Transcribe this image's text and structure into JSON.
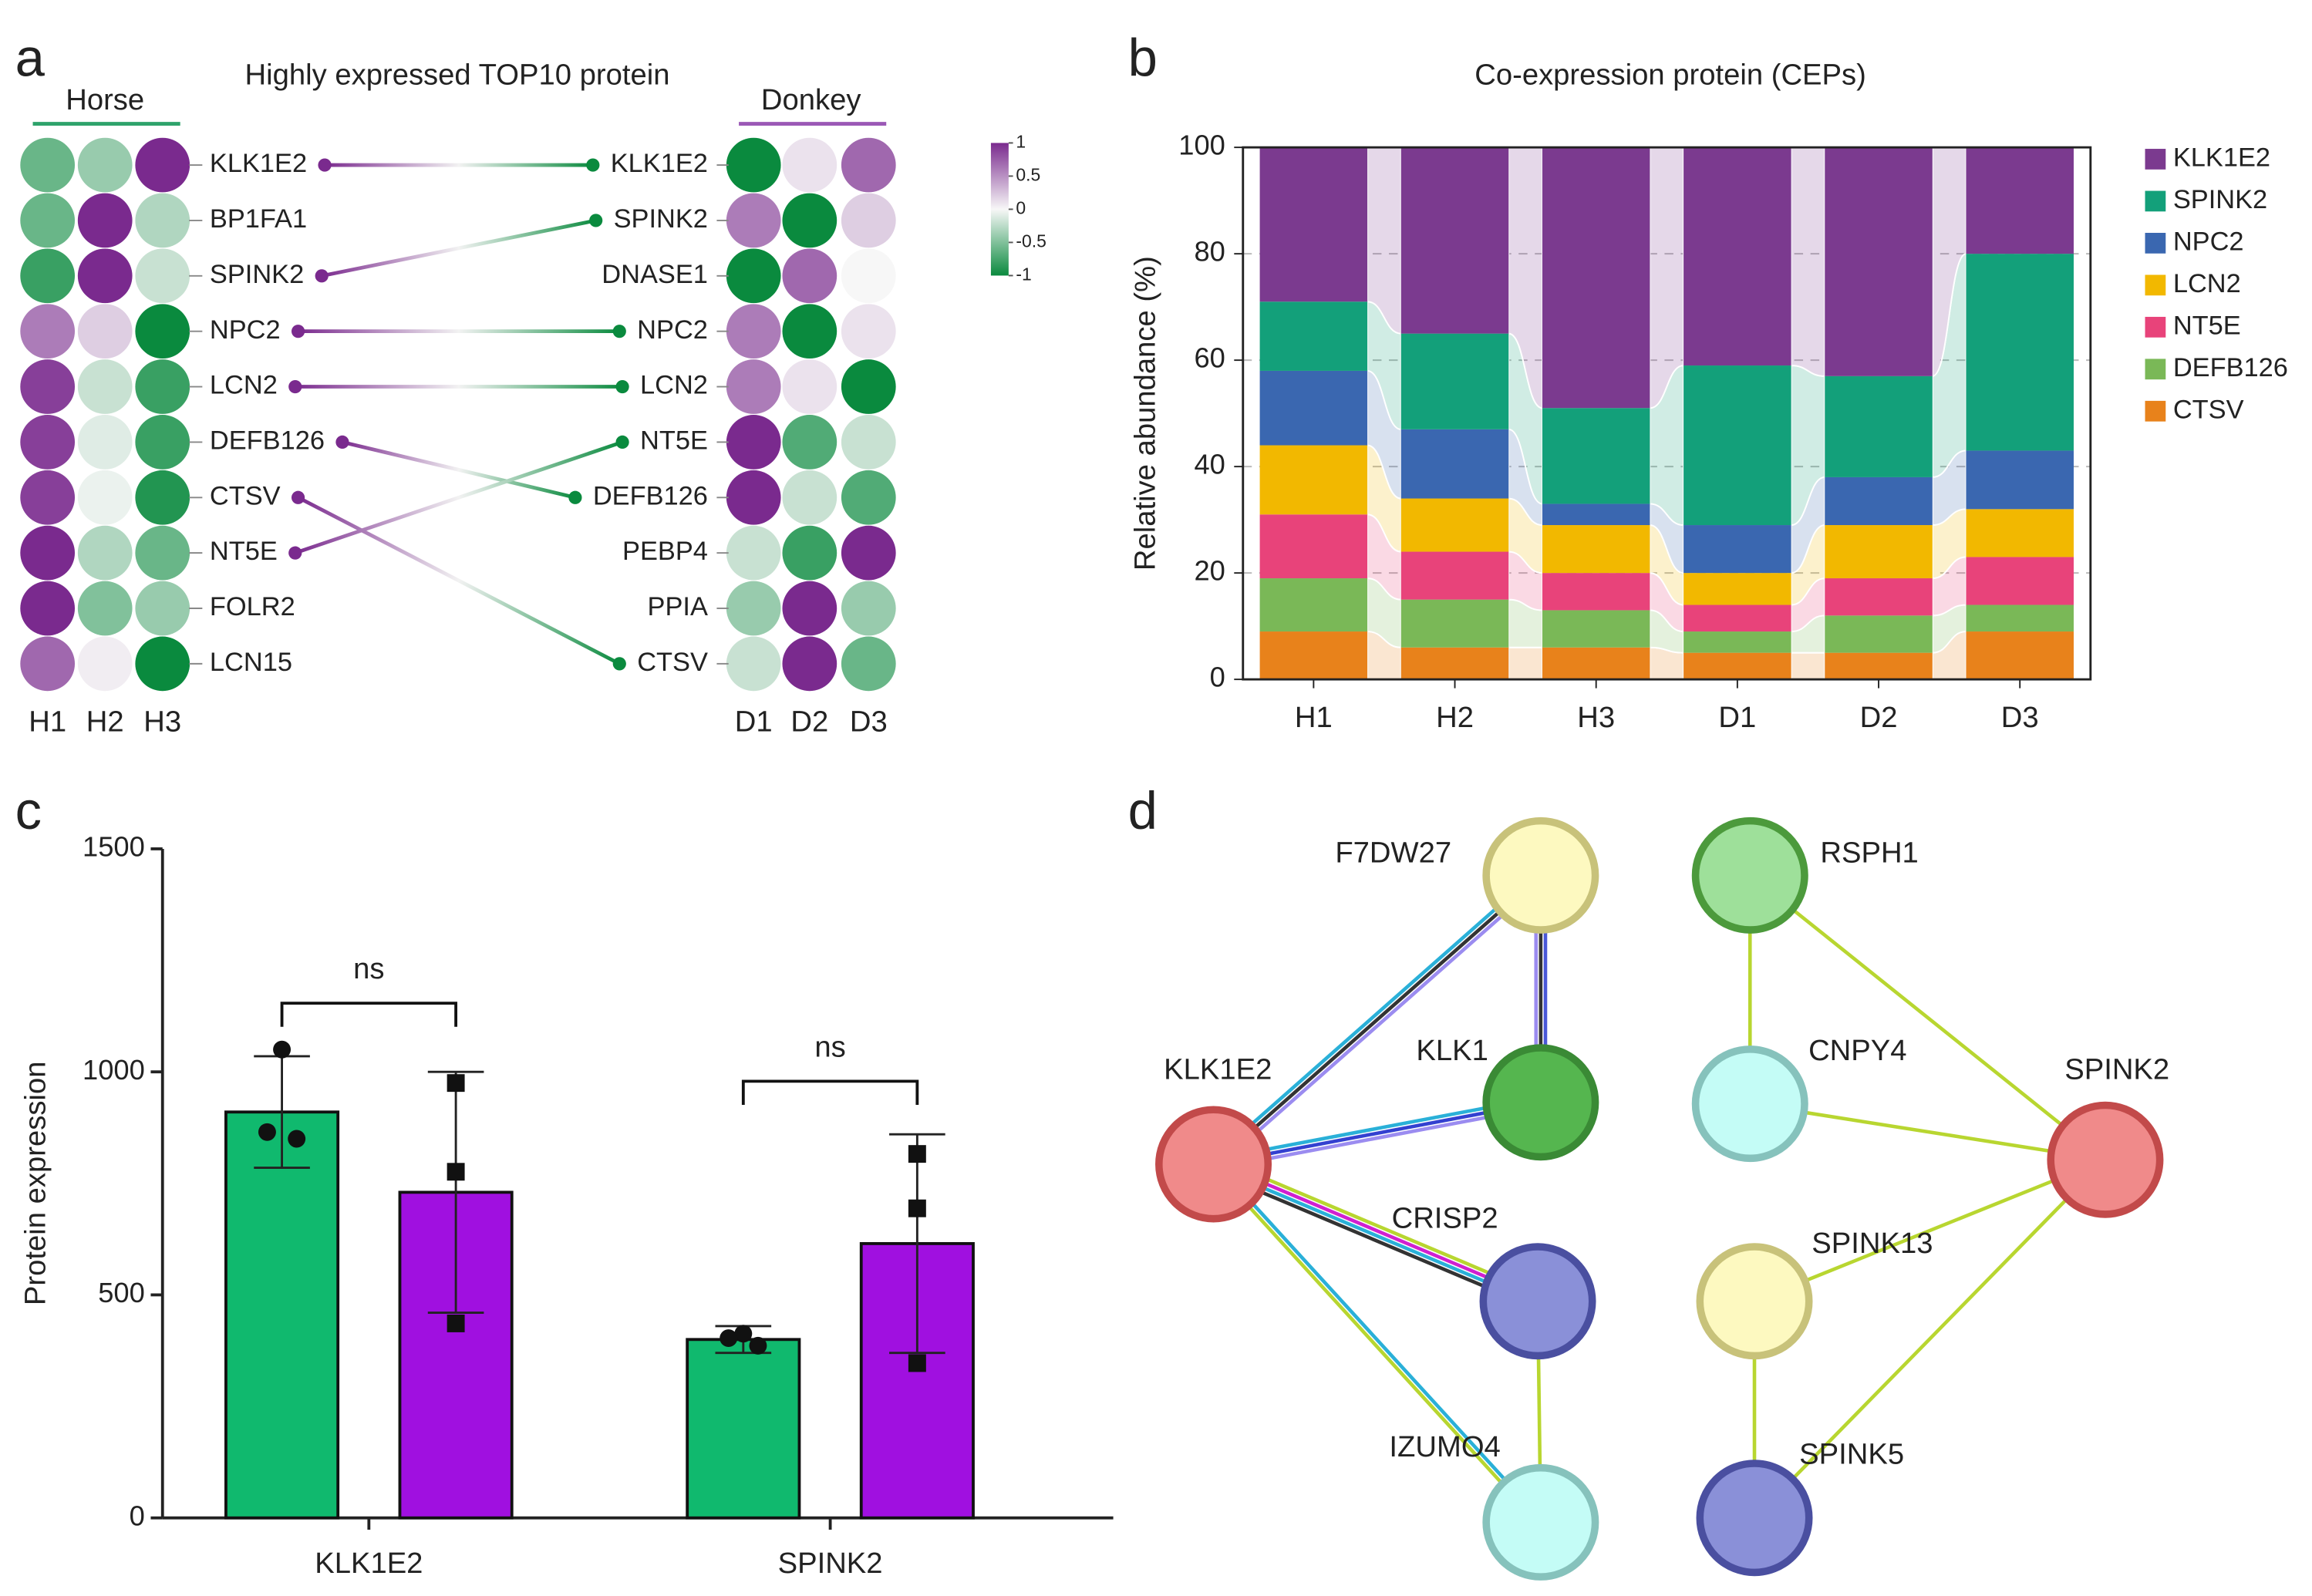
{
  "chart_data": [
    {
      "type": "dotmatrix",
      "panel": "a",
      "title": "Highly expressed TOP10 protein",
      "zlim": [
        -1,
        1
      ],
      "groups": [
        {
          "name": "Horse",
          "color": "#2ea36b",
          "columns": [
            "H1",
            "H2",
            "H3"
          ],
          "rows": [
            "KLK1E2",
            "BP1FA1",
            "SPINK2",
            "NPC2",
            "LCN2",
            "DEFB126",
            "CTSV",
            "NT5E",
            "FOLR2",
            "LCN15"
          ],
          "values": [
            [
              -0.6,
              -0.4,
              1
            ],
            [
              -0.6,
              1,
              -0.3
            ],
            [
              -0.8,
              1,
              -0.2
            ],
            [
              0.6,
              0.2,
              -1
            ],
            [
              0.9,
              -0.2,
              -0.8
            ],
            [
              0.9,
              -0.1,
              -0.8
            ],
            [
              0.9,
              -0.05,
              -0.9
            ],
            [
              1,
              -0.3,
              -0.6
            ],
            [
              1,
              -0.5,
              -0.4
            ],
            [
              0.7,
              0.05,
              -1
            ]
          ]
        },
        {
          "name": "Donkey",
          "color": "#9b59b6",
          "columns": [
            "D1",
            "D2",
            "D3"
          ],
          "rows": [
            "KLK1E2",
            "SPINK2",
            "DNASE1",
            "NPC2",
            "LCN2",
            "NT5E",
            "DEFB126",
            "PEBP4",
            "PPIA",
            "CTSV"
          ],
          "values": [
            [
              -1,
              0.1,
              0.7
            ],
            [
              0.6,
              -1,
              0.2
            ],
            [
              -1,
              0.7,
              0
            ],
            [
              0.6,
              -1,
              0.1
            ],
            [
              0.6,
              0.1,
              -1
            ],
            [
              1,
              -0.7,
              -0.2
            ],
            [
              1,
              -0.2,
              -0.7
            ],
            [
              -0.2,
              -0.8,
              1
            ],
            [
              -0.4,
              1,
              -0.4
            ],
            [
              -0.2,
              1,
              -0.6
            ]
          ]
        }
      ],
      "colorbar": {
        "ticks": [
          1,
          0.5,
          0,
          -0.5,
          -1
        ],
        "colors": [
          "#0a8a3e",
          "#f7f7f7",
          "#7a2a8e"
        ]
      }
    },
    {
      "type": "stacked_bar",
      "panel": "b",
      "title": "Co-expression protein (CEPs)",
      "ylabel": "Relative abundance (%)",
      "categories": [
        "H1",
        "H2",
        "H3",
        "D1",
        "D2",
        "D3"
      ],
      "ylim": [
        0,
        100
      ],
      "yticks": [
        0,
        20,
        40,
        60,
        80,
        100
      ],
      "grid": true,
      "series": [
        {
          "name": "CTSV",
          "color": "#e8821b",
          "values": [
            9,
            6,
            6,
            5,
            5,
            9
          ]
        },
        {
          "name": "DEFB126",
          "color": "#7ab857",
          "values": [
            10,
            9,
            7,
            4,
            7,
            5
          ]
        },
        {
          "name": "NT5E",
          "color": "#e8437a",
          "values": [
            12,
            9,
            7,
            5,
            7,
            9
          ]
        },
        {
          "name": "LCN2",
          "color": "#f2b800",
          "values": [
            13,
            10,
            9,
            6,
            10,
            9
          ]
        },
        {
          "name": "NPC2",
          "color": "#3a67b0",
          "values": [
            14,
            13,
            4,
            9,
            9,
            11
          ]
        },
        {
          "name": "SPINK2",
          "color": "#13a07a",
          "values": [
            13,
            18,
            18,
            30,
            19,
            37
          ]
        },
        {
          "name": "KLK1E2",
          "color": "#7b3a8f",
          "values": [
            29,
            35,
            49,
            41,
            43,
            20
          ]
        }
      ]
    },
    {
      "type": "bar_error",
      "panel": "c",
      "ylabel": "Protein expression",
      "categories": [
        "KLK1E2",
        "SPINK2"
      ],
      "ylim": [
        0,
        1500
      ],
      "yticks": [
        0,
        500,
        1000,
        1500
      ],
      "annotations": [
        "ns",
        "ns"
      ],
      "series": [
        {
          "color": "#10b96e",
          "marker": "circle",
          "values": [
            910,
            400
          ],
          "errors": [
            125,
            30
          ],
          "points": [
            [
              1050,
              850,
              865
            ],
            [
              413,
              386,
              403
            ]
          ]
        },
        {
          "color": "#a010e0",
          "marker": "square",
          "values": [
            730,
            615
          ],
          "errors": [
            270,
            245
          ],
          "points": [
            [
              975,
              776,
              436
            ],
            [
              816,
              694,
              347
            ]
          ]
        }
      ]
    },
    {
      "type": "network",
      "panel": "d",
      "nodes": [
        {
          "label": "F7DW27",
          "fill": "#fdf9c0",
          "stroke": "#c8c27a"
        },
        {
          "label": "KLK1",
          "fill": "#55b64f",
          "stroke": "#3a8a35"
        },
        {
          "label": "KLK1E2",
          "fill": "#f08a8a",
          "stroke": "#c24a4a"
        },
        {
          "label": "CRISP2",
          "fill": "#8a90d8",
          "stroke": "#4a4fa0"
        },
        {
          "label": "IZUMO4",
          "fill": "#c4fcf6",
          "stroke": "#86c2bc"
        },
        {
          "label": "RSPH1",
          "fill": "#9ee09a",
          "stroke": "#4c9a3c"
        },
        {
          "label": "CNPY4",
          "fill": "#c4fcf6",
          "stroke": "#86c2bc"
        },
        {
          "label": "SPINK2",
          "fill": "#f08a8a",
          "stroke": "#c24a4a"
        },
        {
          "label": "SPINK13",
          "fill": "#fdf9c0",
          "stroke": "#c8c27a"
        },
        {
          "label": "SPINK5",
          "fill": "#8a90d8",
          "stroke": "#4a4fa0"
        }
      ],
      "edges": [
        {
          "source": "KLK1E2",
          "target": "F7DW27",
          "colors": [
            "#2ab0d8",
            "#333333",
            "#9b8cf0"
          ]
        },
        {
          "source": "KLK1E2",
          "target": "KLK1",
          "colors": [
            "#2ab0d8",
            "#3340d0",
            "#9b8cf0"
          ]
        },
        {
          "source": "F7DW27",
          "target": "KLK1",
          "colors": [
            "#4a58d8",
            "#333333",
            "#9b8cf0"
          ]
        },
        {
          "source": "KLK1E2",
          "target": "CRISP2",
          "colors": [
            "#b8d630",
            "#d020d0",
            "#2ab0d8",
            "#333333"
          ]
        },
        {
          "source": "KLK1E2",
          "target": "IZUMO4",
          "colors": [
            "#2ab0d8",
            "#b8d630"
          ]
        },
        {
          "source": "CRISP2",
          "target": "IZUMO4",
          "colors": [
            "#b8d630"
          ]
        },
        {
          "source": "RSPH1",
          "target": "CNPY4",
          "colors": [
            "#b8d630"
          ]
        },
        {
          "source": "RSPH1",
          "target": "SPINK2",
          "colors": [
            "#b8d630"
          ]
        },
        {
          "source": "CNPY4",
          "target": "SPINK2",
          "colors": [
            "#b8d630"
          ]
        },
        {
          "source": "SPINK13",
          "target": "SPINK2",
          "colors": [
            "#b8d630"
          ]
        },
        {
          "source": "SPINK13",
          "target": "SPINK5",
          "colors": [
            "#b8d630"
          ]
        },
        {
          "source": "SPINK5",
          "target": "SPINK2",
          "colors": [
            "#b8d630"
          ]
        }
      ]
    }
  ]
}
